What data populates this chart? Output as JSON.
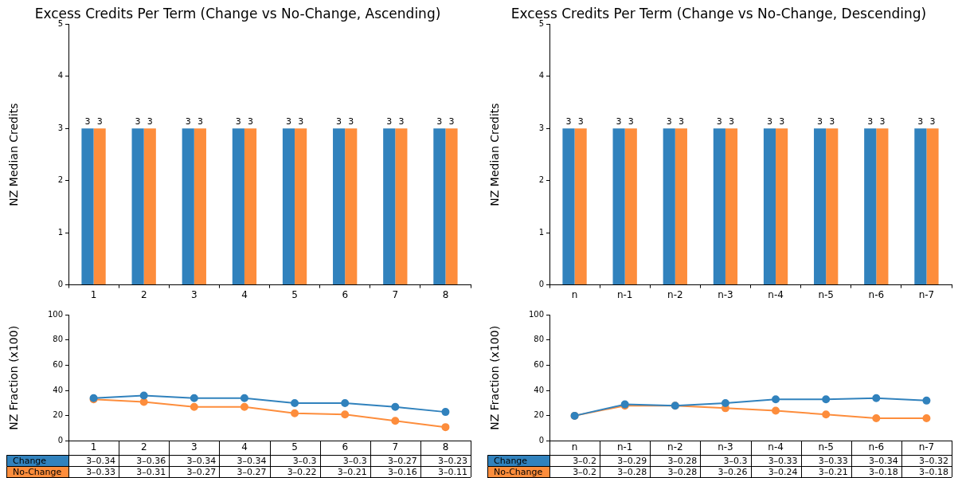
{
  "chart_data": [
    {
      "type": "bar",
      "title": "Excess Credits Per Term (Change vs No-Change, Ascending)",
      "ylabel": "NZ Median Credits",
      "categories": [
        "1",
        "2",
        "3",
        "4",
        "5",
        "6",
        "7",
        "8"
      ],
      "series": [
        {
          "color": "#3182bd",
          "values": [
            3,
            3,
            3,
            3,
            3,
            3,
            3,
            3
          ]
        },
        {
          "color": "#fd8d3c",
          "values": [
            3,
            3,
            3,
            3,
            3,
            3,
            3,
            3
          ]
        }
      ],
      "ylim": [
        0,
        5
      ],
      "yticks": [
        0,
        1,
        2,
        3,
        4,
        5
      ],
      "data_labels": true,
      "grid": false
    },
    {
      "type": "line",
      "ylabel": "NZ Fraction (x100)",
      "categories": [
        "1",
        "2",
        "3",
        "4",
        "5",
        "6",
        "7",
        "8"
      ],
      "series": [
        {
          "name": "Change",
          "color": "#3182bd",
          "values": [
            34,
            36,
            34,
            34,
            30,
            30,
            27,
            23
          ],
          "value_labels": [
            "3–0.34",
            "3–0.36",
            "3–0.34",
            "3–0.34",
            "3–0.3",
            "3–0.3",
            "3–0.27",
            "3–0.23"
          ]
        },
        {
          "name": "No-Change",
          "color": "#fd8d3c",
          "values": [
            33,
            31,
            27,
            27,
            22,
            21,
            16,
            11
          ],
          "value_labels": [
            "3–0.33",
            "3–0.31",
            "3–0.27",
            "3–0.27",
            "3–0.22",
            "3–0.21",
            "3–0.16",
            "3–0.11"
          ]
        }
      ],
      "ylim": [
        0,
        100
      ],
      "yticks": [
        0,
        20,
        40,
        60,
        80,
        100
      ],
      "marker": "circle",
      "grid": false
    },
    {
      "type": "bar",
      "title": "Excess Credits Per Term (Change vs No-Change, Descending)",
      "ylabel": "NZ Median Credits",
      "categories": [
        "n",
        "n-1",
        "n-2",
        "n-3",
        "n-4",
        "n-5",
        "n-6",
        "n-7"
      ],
      "series": [
        {
          "color": "#3182bd",
          "values": [
            3,
            3,
            3,
            3,
            3,
            3,
            3,
            3
          ]
        },
        {
          "color": "#fd8d3c",
          "values": [
            3,
            3,
            3,
            3,
            3,
            3,
            3,
            3
          ]
        }
      ],
      "ylim": [
        0,
        5
      ],
      "yticks": [
        0,
        1,
        2,
        3,
        4,
        5
      ],
      "data_labels": true,
      "grid": false
    },
    {
      "type": "line",
      "ylabel": "NZ Fraction (x100)",
      "categories": [
        "n",
        "n-1",
        "n-2",
        "n-3",
        "n-4",
        "n-5",
        "n-6",
        "n-7"
      ],
      "series": [
        {
          "name": "Change",
          "color": "#3182bd",
          "values": [
            20,
            29,
            28,
            30,
            33,
            33,
            34,
            32
          ],
          "value_labels": [
            "3–0.2",
            "3–0.29",
            "3–0.28",
            "3–0.3",
            "3–0.33",
            "3–0.33",
            "3–0.34",
            "3–0.32"
          ]
        },
        {
          "name": "No-Change",
          "color": "#fd8d3c",
          "values": [
            20,
            28,
            28,
            26,
            24,
            21,
            18,
            18
          ],
          "value_labels": [
            "3–0.2",
            "3–0.28",
            "3–0.28",
            "3–0.26",
            "3–0.24",
            "3–0.21",
            "3–0.18",
            "3–0.18"
          ]
        }
      ],
      "ylim": [
        0,
        100
      ],
      "yticks": [
        0,
        20,
        40,
        60,
        80,
        100
      ],
      "marker": "circle",
      "grid": false
    }
  ]
}
